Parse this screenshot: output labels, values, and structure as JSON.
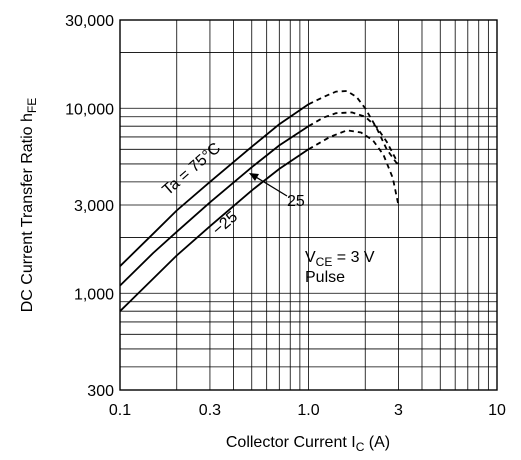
{
  "chart_data": {
    "type": "line",
    "xscale": "log",
    "yscale": "log",
    "xlim": [
      0.1,
      10
    ],
    "ylim": [
      300,
      30000
    ],
    "x_ticks": [
      "0.1",
      "0.3",
      "1.0",
      "3",
      "10"
    ],
    "y_ticks": [
      "300",
      "1,000",
      "3,000",
      "10,000",
      "30,000"
    ],
    "xlabel_main": "Collector Current  I",
    "xlabel_sub": "C",
    "xlabel_unit": "  (A)",
    "ylabel_main": "DC Current Transfer Ratio  h",
    "ylabel_sub": "FE",
    "grid": true,
    "series": [
      {
        "name": "Ta = 75°C",
        "solid": [
          [
            0.1,
            1400
          ],
          [
            0.15,
            2100
          ],
          [
            0.2,
            2800
          ],
          [
            0.3,
            4000
          ],
          [
            0.5,
            6200
          ],
          [
            0.7,
            8200
          ],
          [
            1.0,
            10500
          ]
        ],
        "dashed": [
          [
            1.0,
            10500
          ],
          [
            1.2,
            11500
          ],
          [
            1.4,
            12300
          ],
          [
            1.6,
            12400
          ],
          [
            1.8,
            11500
          ],
          [
            2.0,
            10000
          ],
          [
            2.3,
            7800
          ],
          [
            2.6,
            6000
          ],
          [
            3.0,
            4900
          ]
        ]
      },
      {
        "name": "25",
        "solid": [
          [
            0.1,
            1100
          ],
          [
            0.15,
            1650
          ],
          [
            0.2,
            2150
          ],
          [
            0.3,
            3100
          ],
          [
            0.5,
            4800
          ],
          [
            0.7,
            6300
          ],
          [
            1.0,
            8000
          ]
        ],
        "dashed": [
          [
            1.0,
            8000
          ],
          [
            1.2,
            8900
          ],
          [
            1.4,
            9400
          ],
          [
            1.7,
            9500
          ],
          [
            2.0,
            9000
          ],
          [
            2.3,
            7900
          ],
          [
            2.6,
            6600
          ],
          [
            3.0,
            5000
          ]
        ]
      },
      {
        "name": "−25",
        "solid": [
          [
            0.1,
            800
          ],
          [
            0.15,
            1200
          ],
          [
            0.2,
            1600
          ],
          [
            0.3,
            2300
          ],
          [
            0.5,
            3600
          ],
          [
            0.7,
            4700
          ],
          [
            1.0,
            6000
          ]
        ],
        "dashed": [
          [
            1.0,
            6000
          ],
          [
            1.3,
            7000
          ],
          [
            1.6,
            7600
          ],
          [
            1.9,
            7400
          ],
          [
            2.2,
            6700
          ],
          [
            2.5,
            5600
          ],
          [
            2.8,
            4200
          ],
          [
            3.0,
            3000
          ]
        ]
      }
    ],
    "labels": {
      "ta": "Ta = 75°C",
      "s25": "25",
      "sm25": "−25",
      "vce_main": "V",
      "vce_sub": "CE",
      "vce_rest": " = 3 V",
      "pulse": "Pulse"
    }
  }
}
